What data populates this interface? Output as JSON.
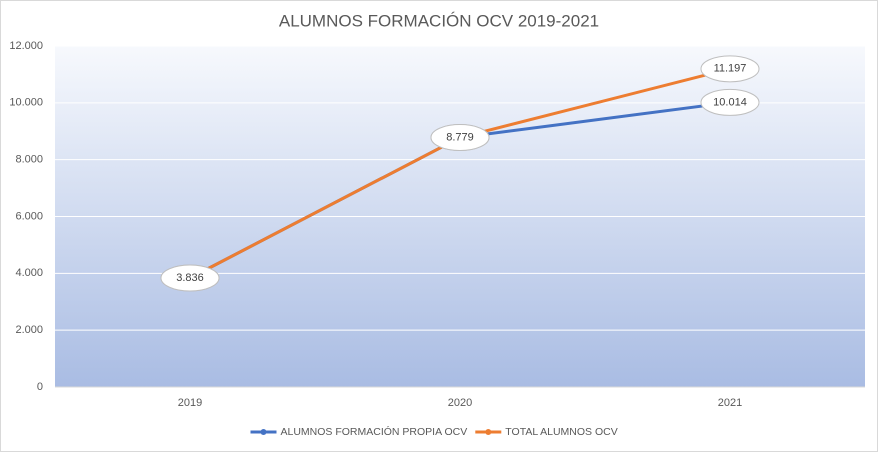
{
  "chart_data": {
    "type": "line",
    "title": "ALUMNOS FORMACIÓN OCV 2019-2021",
    "categories": [
      "2019",
      "2020",
      "2021"
    ],
    "series": [
      {
        "name": "ALUMNOS FORMACIÓN PROPIA OCV",
        "color": "#4472c4",
        "values": [
          3836,
          8779,
          10014
        ],
        "value_labels": [
          "3.836",
          "8.779",
          "10.014"
        ]
      },
      {
        "name": "TOTAL ALUMNOS OCV",
        "color": "#ed7d31",
        "values": [
          3836,
          8779,
          11197
        ],
        "value_labels": [
          "3.836",
          "8.779",
          "11.197"
        ]
      }
    ],
    "ylim": [
      0,
      12000
    ],
    "yticks": [
      0,
      {
        "value": 2000,
        "label": "2.000"
      },
      {
        "value": 4000,
        "label": "4.000"
      },
      {
        "value": 6000,
        "label": "6.000"
      },
      {
        "value": 8000,
        "label": "8.000"
      },
      {
        "value": 10000,
        "label": "10.000"
      },
      {
        "value": 12000,
        "label": "12.000"
      }
    ],
    "grid": true,
    "legend": "bottom"
  }
}
